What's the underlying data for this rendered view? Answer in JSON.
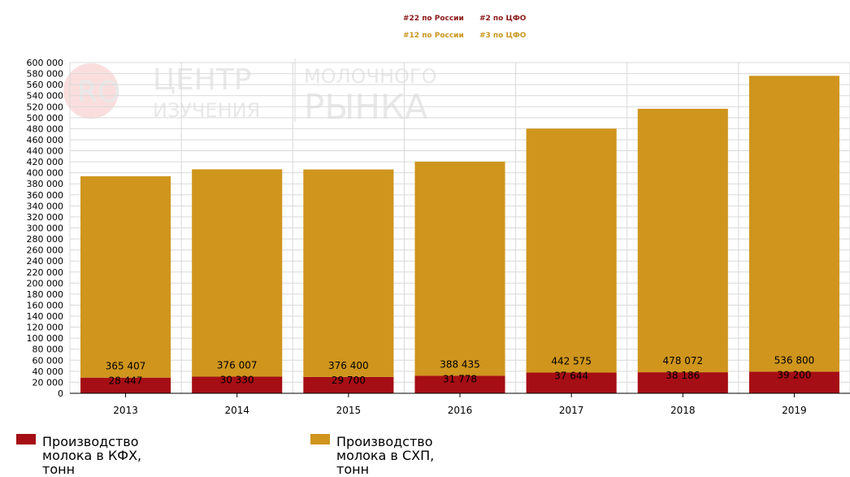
{
  "header": {
    "rank_row_1": [
      {
        "text": "#22 по России",
        "color": "#8b1a1a"
      },
      {
        "text": "#2 по ЦФО",
        "color": "#8b1a1a"
      }
    ],
    "rank_row_2": [
      {
        "text": "#12 по России",
        "color": "#c9961e"
      },
      {
        "text": "#3 по ЦФО",
        "color": "#c9961e"
      }
    ]
  },
  "watermark": {
    "badge": "RO",
    "line1_left": "ЦЕНТР",
    "line2_left": "ИЗУЧЕНИЯ",
    "line1_right": "МОЛОЧНОГО",
    "line2_right": "РЫНКА"
  },
  "chart_data": {
    "type": "bar",
    "stacked": true,
    "categories": [
      "2013",
      "2014",
      "2015",
      "2016",
      "2017",
      "2018",
      "2019"
    ],
    "series": [
      {
        "name": "Производство молока в КФХ, тонн",
        "color": "#a50e14",
        "values": [
          28447,
          30330,
          29700,
          31778,
          37644,
          38186,
          39200
        ],
        "labels": [
          "28 447",
          "30 330",
          "29 700",
          "31 778",
          "37 644",
          "38 186",
          "39 200"
        ]
      },
      {
        "name": "Производство молока в СХП, тонн",
        "color": "#cf951d",
        "values": [
          365407,
          376007,
          376400,
          388435,
          442575,
          478072,
          536800
        ],
        "labels": [
          "365 407",
          "376 007",
          "376 400",
          "388 435",
          "442 575",
          "478 072",
          "536 800"
        ]
      }
    ],
    "ylim": [
      0,
      600000
    ],
    "ytick_step": 20000,
    "ytick_labels": [
      "0",
      "20 000",
      "40 000",
      "60 000",
      "80 000",
      "100 000",
      "120 000",
      "140 000",
      "160 000",
      "180 000",
      "200 000",
      "220 000",
      "240 000",
      "260 000",
      "280 000",
      "300 000",
      "320 000",
      "340 000",
      "360 000",
      "380 000",
      "400 000",
      "420 000",
      "440 000",
      "460 000",
      "480 000",
      "500 000",
      "520 000",
      "540 000",
      "560 000",
      "580 000",
      "600 000"
    ],
    "grid": true,
    "legend_position": "bottom-left",
    "legend_lines": [
      [
        "Производство",
        "молока в КФХ,",
        "тонн"
      ],
      [
        "Производство",
        "молока в СХП,",
        "тонн"
      ]
    ]
  }
}
